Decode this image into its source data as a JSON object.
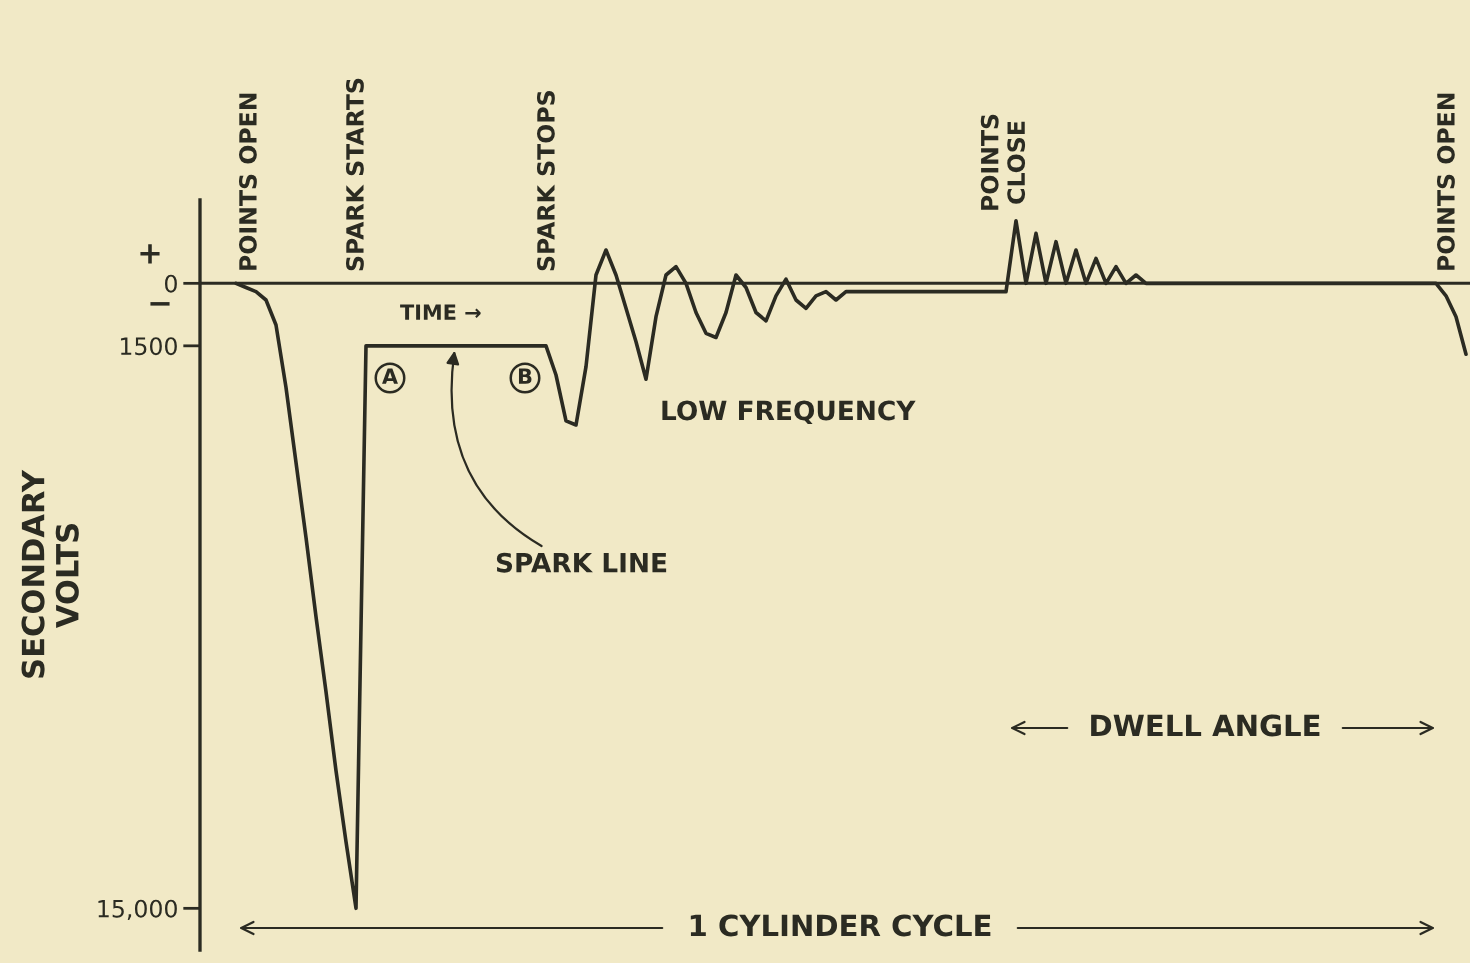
{
  "chart_data": {
    "type": "line",
    "ylabel": "SECONDARY\nVOLTS",
    "categories": [
      null,
      null,
      null,
      null,
      null,
      null,
      null,
      null,
      null,
      null,
      null,
      null,
      null,
      null,
      null,
      null,
      null,
      null,
      null,
      null,
      null,
      null,
      null,
      null,
      null,
      null,
      null,
      null,
      null,
      null,
      null,
      null,
      null,
      null,
      null,
      null,
      null,
      null,
      null,
      null,
      null,
      null,
      null,
      null,
      null,
      null,
      null,
      null,
      null,
      null,
      null,
      null,
      null,
      null,
      null,
      null,
      null,
      null,
      null,
      null,
      null,
      null,
      null,
      null,
      null,
      null,
      null,
      null,
      null,
      null,
      null,
      null,
      null,
      null,
      null,
      null,
      null,
      null,
      null,
      null,
      null,
      null,
      null,
      null,
      null,
      null,
      null,
      null,
      null,
      null,
      null,
      null,
      null,
      null,
      null,
      null,
      null,
      null,
      null,
      null,
      null,
      null,
      null,
      null,
      null,
      null,
      null,
      null,
      null,
      null,
      null,
      null,
      null,
      null,
      null,
      null,
      null,
      null,
      null,
      null,
      null,
      null,
      null,
      null
    ],
    "series": [
      {
        "color": "#2b2b22",
        "values": [
          0,
          -100,
          -200,
          -400,
          -1000,
          -2500,
          -4300,
          -6100,
          -8000,
          -9800,
          -11700,
          -13400,
          -15000,
          -1500,
          -1500,
          -1500,
          -1500,
          -1500,
          -1500,
          -1500,
          -1500,
          -1500,
          -1500,
          -1500,
          -1500,
          -1500,
          -1500,
          -1500,
          -1500,
          -1500,
          -1500,
          -1500,
          -2200,
          -3300,
          -3400,
          -2000,
          200,
          800,
          200,
          -600,
          -1400,
          -2300,
          -800,
          200,
          400,
          0,
          -700,
          -1200,
          -1300,
          -700,
          200,
          -100,
          -700,
          -900,
          -300,
          100,
          -400,
          -600,
          -300,
          -200,
          -400,
          -200,
          -200,
          -200,
          -200,
          -200,
          -200,
          -200,
          -200,
          -200,
          -200,
          -200,
          -200,
          -200,
          -200,
          -200,
          -200,
          -200,
          1500,
          0,
          1200,
          0,
          1000,
          0,
          800,
          0,
          600,
          0,
          400,
          0,
          200,
          0,
          0,
          0,
          0,
          0,
          0,
          0,
          0,
          0,
          0,
          0,
          0,
          0,
          0,
          0,
          0,
          0,
          0,
          0,
          0,
          0,
          0,
          0,
          0,
          0,
          0,
          0,
          0,
          0,
          0,
          -300,
          -800,
          -1700
        ]
      }
    ],
    "ylim": [
      -16000,
      2000
    ],
    "yticks": [
      0,
      {
        "value": -1500,
        "label": "1500"
      },
      {
        "value": -15000,
        "label": "15,000"
      }
    ],
    "tick_labels": "y",
    "ref_lines": [
      {
        "axis": "y",
        "value": 0
      }
    ],
    "annotations": [
      "+",
      "−",
      "POINTS OPEN",
      "SPARK STARTS",
      "SPARK STOPS",
      "POINTS\nCLOSE",
      "POINTS OPEN",
      "TIME →",
      "A",
      "B",
      "LOW FREQUENCY",
      "SPARK LINE",
      "DWELL ANGLE",
      "1 CYLINDER CYCLE"
    ]
  }
}
